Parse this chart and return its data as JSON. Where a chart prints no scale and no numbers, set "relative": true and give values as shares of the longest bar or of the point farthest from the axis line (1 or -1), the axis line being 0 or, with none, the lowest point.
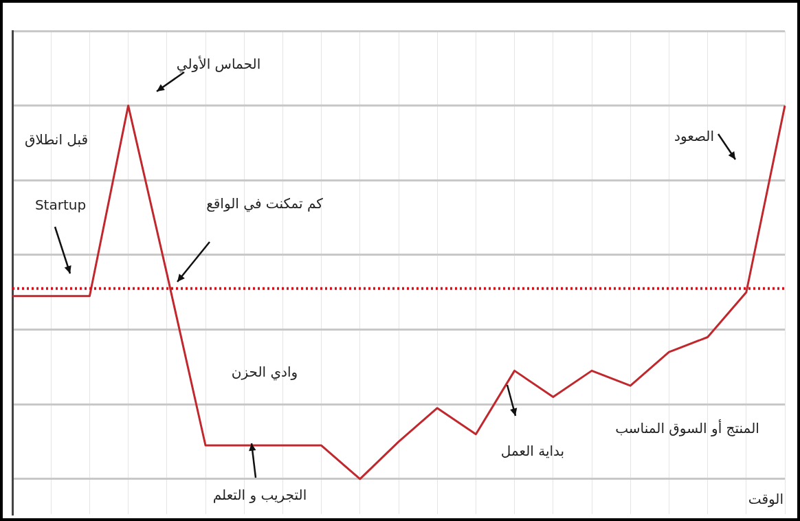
{
  "chart_data": {
    "type": "line",
    "relative": true,
    "xlabel": "الوقت",
    "categories": [
      null,
      null,
      null,
      null,
      null,
      null,
      null,
      null,
      null,
      null,
      null,
      null,
      null,
      null,
      null,
      null,
      null,
      null,
      null,
      null,
      null
    ],
    "series": [
      {
        "color": "#c0282d",
        "values": [
          0.49,
          0.49,
          0.49,
          1,
          0.55,
          0.09,
          0.09,
          0.09,
          0.09,
          0,
          0.1,
          0.19,
          0.12,
          0.29,
          0.22,
          0.29,
          0.25,
          0.34,
          0.38,
          0.5,
          1
        ]
      }
    ],
    "ref_lines": [
      {
        "axis": "y",
        "value": 0.51,
        "color": "#d2141e",
        "line_style": "dotted"
      }
    ],
    "annotations": [
      "الحماس الأولي",
      "قبل انطلاق",
      "Startup",
      "كم تمكنت في الواقع",
      "وادي الحزن",
      "التجريب و التعلم",
      "بداية العمل",
      "المنتج أو السوق المناسب",
      "الصعود"
    ],
    "grid": true,
    "legend": false,
    "line_style": "solid"
  }
}
